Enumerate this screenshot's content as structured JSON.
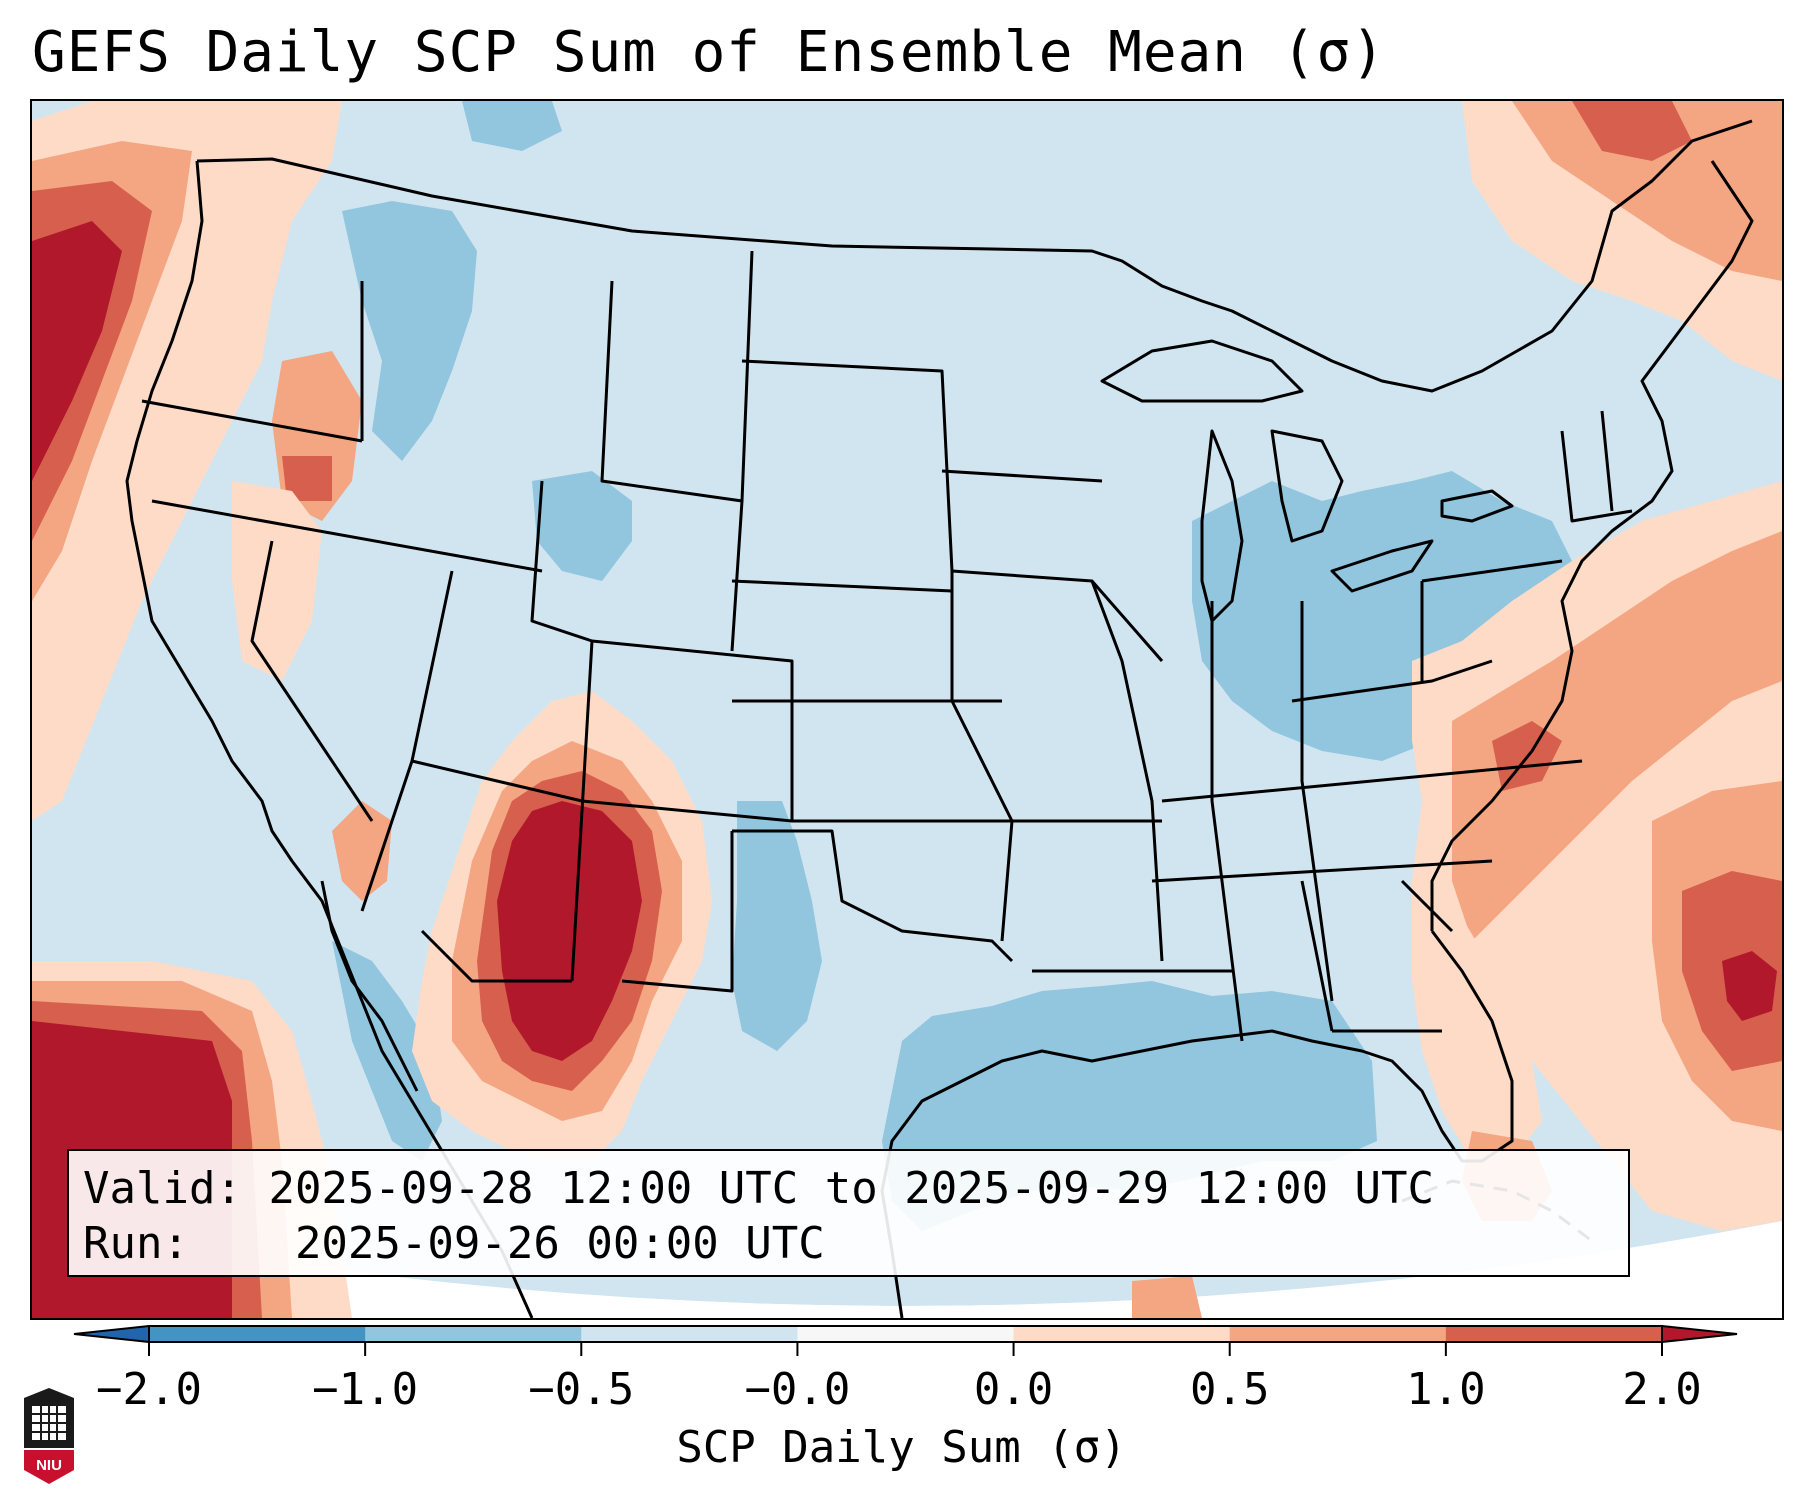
{
  "title": "GEFS Daily SCP Sum of Ensemble Mean (σ)",
  "info": {
    "valid_label": "Valid:",
    "valid_value": "2025-09-28 12:00 UTC to 2025-09-29 12:00 UTC",
    "run_label": "Run:",
    "run_value": "2025-09-26 00:00 UTC"
  },
  "colorbar": {
    "label": "SCP Daily Sum (σ)",
    "ticks": [
      "−2.0",
      "−1.0",
      "−0.5",
      "−0.0",
      "0.0",
      "0.5",
      "1.0",
      "2.0"
    ],
    "colors": [
      "#4393c3",
      "#92c5de",
      "#d1e5f0",
      "#f7f7f7",
      "#fddbc7",
      "#f4a582",
      "#d6604d"
    ],
    "extend_low_color": "#2166ac",
    "extend_high_color": "#b2182b"
  },
  "map": {
    "background_color": "#d1e5f0",
    "region": "Contiguous United States",
    "lines": "state and coastline borders"
  },
  "logo": {
    "text": "NIU"
  }
}
